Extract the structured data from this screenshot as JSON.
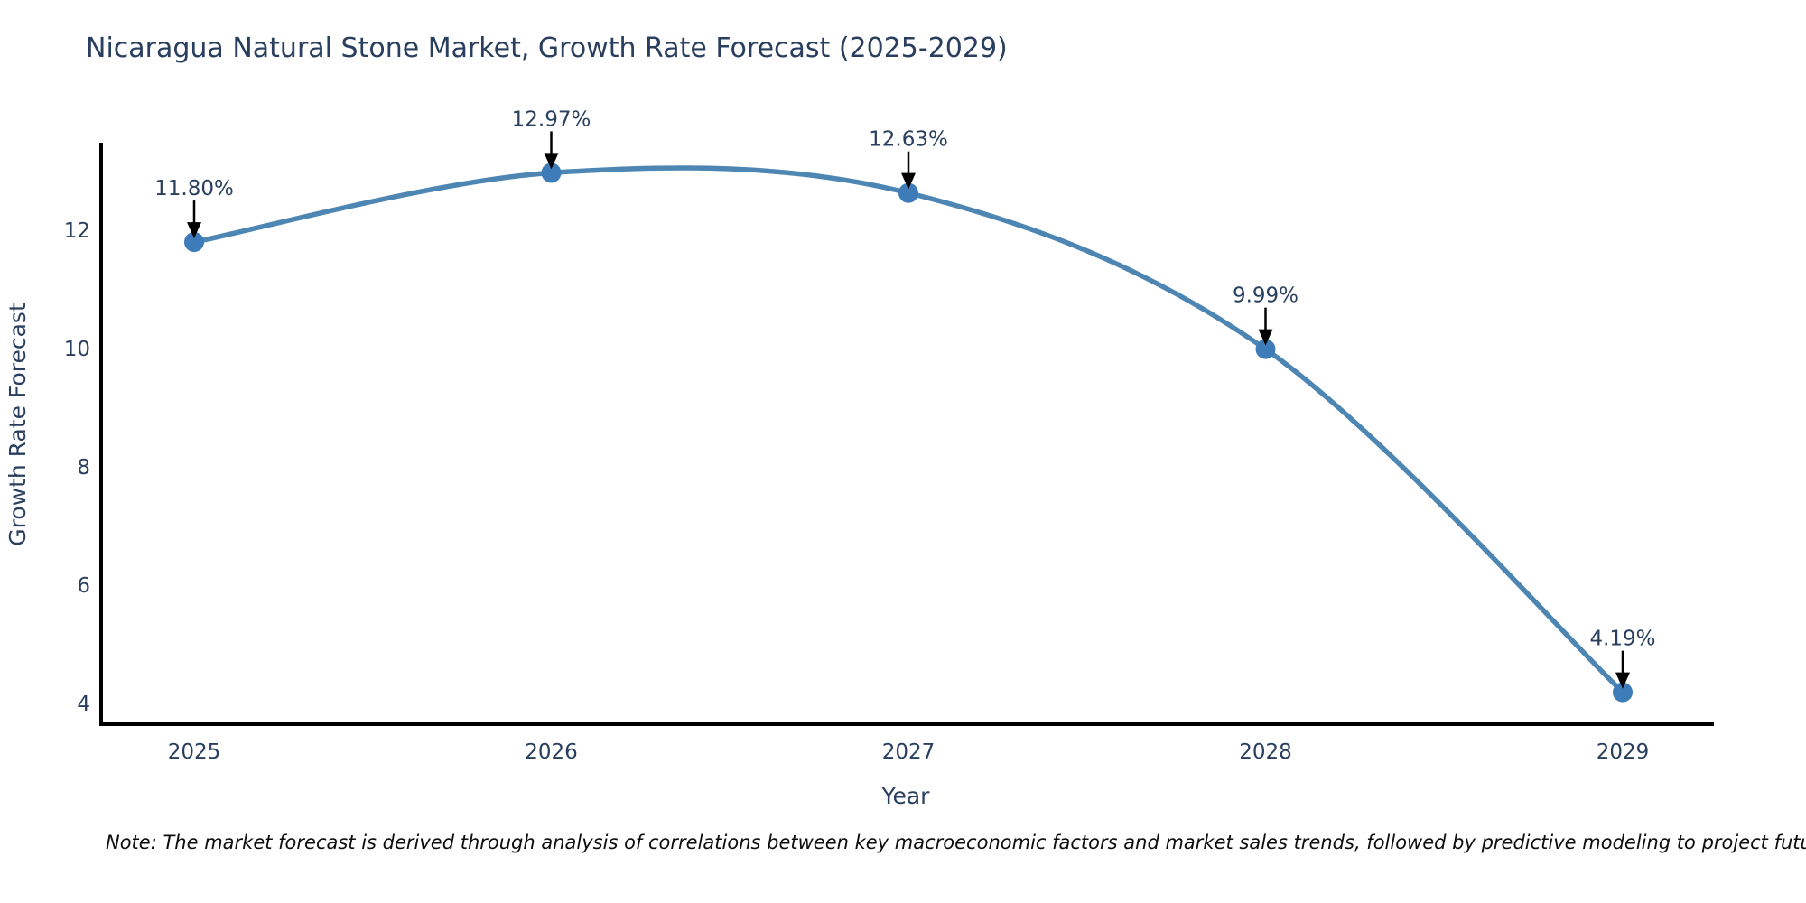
{
  "page": {
    "background": "#ffffff"
  },
  "note": "Note: The market forecast is derived through analysis of correlations between key macroeconomic factors and market sales trends, followed by predictive modeling to project future sales",
  "colors": {
    "text": "#2a3f5f",
    "axis": "#000000",
    "line": "#4d86b3",
    "marker": "#3d7cb8",
    "arrow": "#000000",
    "note_text": "#0d0d0d"
  },
  "chart_data": {
    "type": "line",
    "title": "Nicaragua Natural Stone Market, Growth Rate Forecast (2025-2029)",
    "xlabel": "Year",
    "ylabel": "Growth Rate Forecast",
    "categories": [
      "2025",
      "2026",
      "2027",
      "2028",
      "2029"
    ],
    "series": [
      {
        "name": "Growth Rate Forecast",
        "values": [
          11.8,
          12.97,
          12.63,
          9.99,
          4.19
        ]
      }
    ],
    "point_labels": [
      "11.80%",
      "12.97%",
      "12.63%",
      "9.99%",
      "4.19%"
    ],
    "yticks": [
      4,
      6,
      8,
      10,
      12
    ],
    "ylim": [
      3.65,
      13.48
    ],
    "line_shape": "spline",
    "markers": true,
    "grid": false,
    "legend": false,
    "annotation_style": "label-above-with-down-arrow"
  }
}
